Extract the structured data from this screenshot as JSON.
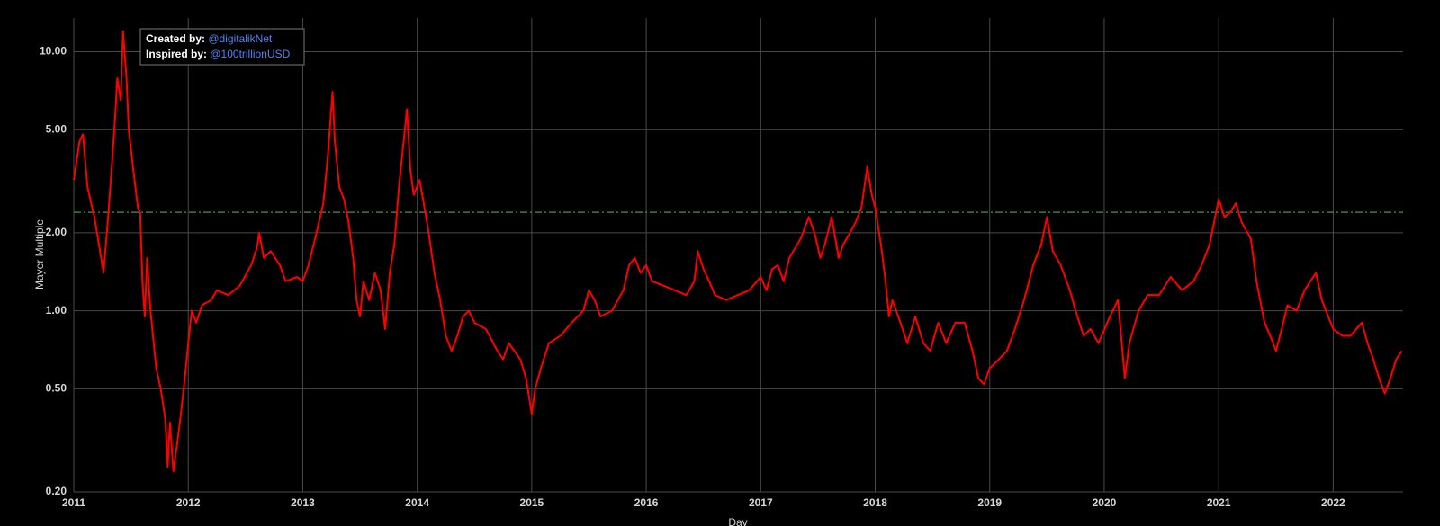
{
  "chart_data": {
    "type": "line",
    "y_label": "Mayer Multiple",
    "x_label": "Day",
    "log_y": true,
    "grid": true,
    "color": "#ff0000",
    "xlim": [
      2011,
      2022.61
    ],
    "xticks": [
      2011,
      2012,
      2013,
      2014,
      2015,
      2016,
      2017,
      2018,
      2019,
      2020,
      2021,
      2022
    ],
    "ylim": [
      0.2,
      13.5
    ],
    "yticks": [
      {
        "value": 0.2,
        "label": "0.20"
      },
      {
        "value": 0.5,
        "label": "0.50"
      },
      {
        "value": 1,
        "label": "1.00"
      },
      {
        "value": 2,
        "label": "2.00"
      },
      {
        "value": 5,
        "label": "5.00"
      },
      {
        "value": 10,
        "label": "10.00"
      }
    ],
    "reference_line": {
      "value": 2.4,
      "color": "#3f9a3f"
    },
    "annotation": {
      "lines": [
        {
          "label": "Created by:",
          "handle": "@digitalikNet"
        },
        {
          "label": "Inspired by:",
          "handle": "@100trillionUSD"
        }
      ]
    },
    "x": [
      2011.0,
      2011.05,
      2011.08,
      2011.12,
      2011.18,
      2011.22,
      2011.26,
      2011.3,
      2011.33,
      2011.36,
      2011.38,
      2011.41,
      2011.43,
      2011.46,
      2011.48,
      2011.52,
      2011.56,
      2011.58,
      2011.6,
      2011.62,
      2011.64,
      2011.67,
      2011.72,
      2011.76,
      2011.8,
      2011.82,
      2011.84,
      2011.87,
      2011.9,
      2011.93,
      2011.97,
      2012.0,
      2012.03,
      2012.07,
      2012.12,
      2012.2,
      2012.25,
      2012.35,
      2012.45,
      2012.55,
      2012.6,
      2012.62,
      2012.66,
      2012.72,
      2012.8,
      2012.85,
      2012.95,
      2013.0,
      2013.05,
      2013.12,
      2013.18,
      2013.22,
      2013.26,
      2013.28,
      2013.32,
      2013.36,
      2013.4,
      2013.44,
      2013.47,
      2013.5,
      2013.53,
      2013.58,
      2013.63,
      2013.68,
      2013.72,
      2013.76,
      2013.8,
      2013.84,
      2013.91,
      2013.94,
      2013.97,
      2014.02,
      2014.05,
      2014.1,
      2014.15,
      2014.2,
      2014.25,
      2014.3,
      2014.35,
      2014.4,
      2014.45,
      2014.5,
      2014.6,
      2014.7,
      2014.75,
      2014.8,
      2014.9,
      2014.95,
      2015.0,
      2015.03,
      2015.08,
      2015.15,
      2015.25,
      2015.35,
      2015.45,
      2015.5,
      2015.55,
      2015.6,
      2015.7,
      2015.8,
      2015.85,
      2015.9,
      2015.95,
      2016.0,
      2016.05,
      2016.15,
      2016.25,
      2016.35,
      2016.42,
      2016.45,
      2016.5,
      2016.55,
      2016.6,
      2016.7,
      2016.8,
      2016.9,
      2017.0,
      2017.05,
      2017.1,
      2017.15,
      2017.2,
      2017.25,
      2017.35,
      2017.42,
      2017.47,
      2017.52,
      2017.56,
      2017.62,
      2017.68,
      2017.72,
      2017.78,
      2017.83,
      2017.88,
      2017.93,
      2017.97,
      2018.0,
      2018.05,
      2018.09,
      2018.12,
      2018.15,
      2018.22,
      2018.28,
      2018.35,
      2018.42,
      2018.48,
      2018.55,
      2018.62,
      2018.7,
      2018.78,
      2018.85,
      2018.9,
      2018.95,
      2019.0,
      2019.08,
      2019.15,
      2019.22,
      2019.3,
      2019.38,
      2019.45,
      2019.5,
      2019.55,
      2019.62,
      2019.7,
      2019.75,
      2019.82,
      2019.88,
      2019.95,
      2020.05,
      2020.12,
      2020.18,
      2020.22,
      2020.3,
      2020.38,
      2020.48,
      2020.58,
      2020.68,
      2020.78,
      2020.85,
      2020.92,
      2021.0,
      2021.05,
      2021.1,
      2021.15,
      2021.2,
      2021.28,
      2021.33,
      2021.4,
      2021.45,
      2021.5,
      2021.55,
      2021.6,
      2021.68,
      2021.75,
      2021.8,
      2021.85,
      2021.9,
      2022.0,
      2022.08,
      2022.15,
      2022.25,
      2022.3,
      2022.35,
      2022.4,
      2022.45,
      2022.5,
      2022.55,
      2022.6
    ],
    "values": [
      3.2,
      4.5,
      4.8,
      3.0,
      2.3,
      1.8,
      1.4,
      2.3,
      3.5,
      5.5,
      7.9,
      6.5,
      12.0,
      8.0,
      5.0,
      3.5,
      2.5,
      2.4,
      1.3,
      0.95,
      1.6,
      1.0,
      0.6,
      0.5,
      0.38,
      0.25,
      0.37,
      0.24,
      0.3,
      0.38,
      0.55,
      0.75,
      1.0,
      0.9,
      1.05,
      1.1,
      1.2,
      1.15,
      1.25,
      1.5,
      1.75,
      2.0,
      1.6,
      1.7,
      1.5,
      1.3,
      1.35,
      1.3,
      1.5,
      2.0,
      2.6,
      4.0,
      7.0,
      4.5,
      3.0,
      2.7,
      2.2,
      1.6,
      1.1,
      0.95,
      1.3,
      1.1,
      1.4,
      1.2,
      0.85,
      1.4,
      1.8,
      3.0,
      6.0,
      3.5,
      2.8,
      3.2,
      2.7,
      2.0,
      1.4,
      1.1,
      0.8,
      0.7,
      0.8,
      0.95,
      1.0,
      0.9,
      0.85,
      0.7,
      0.65,
      0.75,
      0.65,
      0.55,
      0.4,
      0.5,
      0.6,
      0.75,
      0.8,
      0.9,
      1.0,
      1.2,
      1.1,
      0.95,
      1.0,
      1.2,
      1.5,
      1.6,
      1.4,
      1.5,
      1.3,
      1.25,
      1.2,
      1.15,
      1.3,
      1.7,
      1.45,
      1.3,
      1.15,
      1.1,
      1.15,
      1.2,
      1.35,
      1.2,
      1.45,
      1.5,
      1.3,
      1.6,
      1.9,
      2.3,
      2.0,
      1.6,
      1.8,
      2.3,
      1.6,
      1.8,
      2.0,
      2.2,
      2.5,
      3.6,
      2.8,
      2.5,
      1.8,
      1.3,
      0.95,
      1.1,
      0.9,
      0.75,
      0.95,
      0.75,
      0.7,
      0.9,
      0.75,
      0.9,
      0.9,
      0.7,
      0.55,
      0.52,
      0.6,
      0.65,
      0.7,
      0.85,
      1.1,
      1.5,
      1.8,
      2.3,
      1.7,
      1.5,
      1.2,
      1.0,
      0.8,
      0.85,
      0.75,
      0.95,
      1.1,
      0.55,
      0.75,
      1.0,
      1.15,
      1.15,
      1.35,
      1.2,
      1.3,
      1.5,
      1.8,
      2.7,
      2.3,
      2.4,
      2.6,
      2.2,
      1.9,
      1.3,
      0.9,
      0.8,
      0.7,
      0.85,
      1.05,
      1.0,
      1.2,
      1.3,
      1.4,
      1.1,
      0.85,
      0.8,
      0.8,
      0.9,
      0.75,
      0.65,
      0.55,
      0.48,
      0.55,
      0.65,
      0.7
    ]
  }
}
